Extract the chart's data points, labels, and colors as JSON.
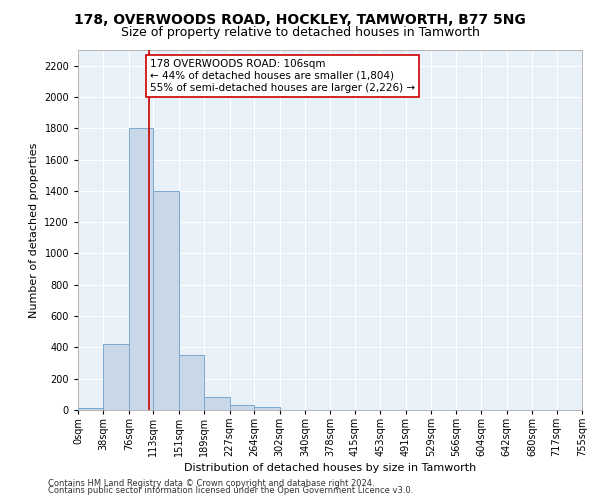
{
  "title": "178, OVERWOODS ROAD, HOCKLEY, TAMWORTH, B77 5NG",
  "subtitle": "Size of property relative to detached houses in Tamworth",
  "xlabel": "Distribution of detached houses by size in Tamworth",
  "ylabel": "Number of detached properties",
  "bin_edges": [
    0,
    38,
    76,
    113,
    151,
    189,
    227,
    264,
    302,
    340,
    378,
    415,
    453,
    491,
    529,
    566,
    604,
    642,
    680,
    717,
    755
  ],
  "bar_heights": [
    15,
    420,
    1800,
    1400,
    350,
    80,
    30,
    20,
    0,
    0,
    0,
    0,
    0,
    0,
    0,
    0,
    0,
    0,
    0,
    0
  ],
  "bar_color": "#c8d8e8",
  "bar_edgecolor": "#7aa8cc",
  "property_size": 106,
  "vline_color": "#cc0000",
  "ylim": [
    0,
    2300
  ],
  "yticks": [
    0,
    200,
    400,
    600,
    800,
    1000,
    1200,
    1400,
    1600,
    1800,
    2000,
    2200
  ],
  "annotation_text": "178 OVERWOODS ROAD: 106sqm\n← 44% of detached houses are smaller (1,804)\n55% of semi-detached houses are larger (2,226) →",
  "annotation_box_color": "#ffffff",
  "annotation_box_edgecolor": "#cc0000",
  "footnote_line1": "Contains HM Land Registry data © Crown copyright and database right 2024.",
  "footnote_line2": "Contains public sector information licensed under the Open Government Licence v3.0.",
  "background_color": "#e8f0f8",
  "grid_color": "#ffffff",
  "title_fontsize": 10,
  "subtitle_fontsize": 9,
  "tick_label_fontsize": 7,
  "ylabel_fontsize": 8,
  "xlabel_fontsize": 8,
  "annotation_fontsize": 7.5,
  "footnote_fontsize": 6
}
